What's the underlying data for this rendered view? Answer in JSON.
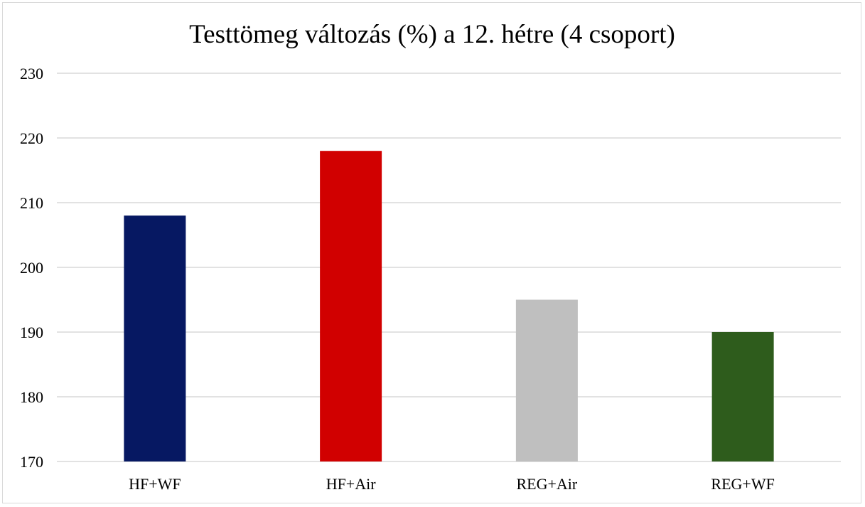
{
  "chart_data": {
    "type": "bar",
    "title": "Testtömeg változás (%) a 12. hétre (4 csoport)",
    "xlabel": "",
    "ylabel": "",
    "categories": [
      "HF+WF",
      "HF+Air",
      "REG+Air",
      "REG+WF"
    ],
    "values": [
      208,
      218,
      195,
      190
    ],
    "colors": [
      "#061862",
      "#d10000",
      "#bfbfbf",
      "#2e5c1c"
    ],
    "ylim": [
      170,
      230
    ],
    "yticks": [
      "170",
      "180",
      "190",
      "200",
      "210",
      "220",
      "230"
    ],
    "grid": true,
    "legend": "none"
  }
}
